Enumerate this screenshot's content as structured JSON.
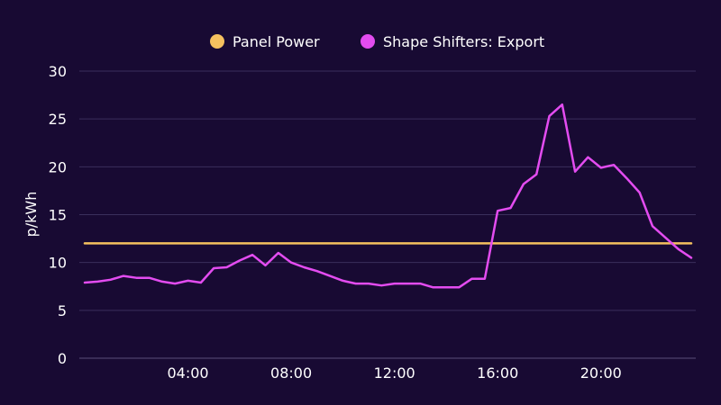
{
  "chart_data": {
    "type": "line",
    "ylabel": "p/kWh",
    "ylim": [
      0,
      30
    ],
    "yticks": [
      0,
      5,
      10,
      15,
      20,
      25,
      30
    ],
    "x_unit": "hours",
    "xlim": [
      0,
      23.5
    ],
    "xticks": [
      {
        "value": 4,
        "label": "04:00"
      },
      {
        "value": 8,
        "label": "08:00"
      },
      {
        "value": 12,
        "label": "12:00"
      },
      {
        "value": 16,
        "label": "16:00"
      },
      {
        "value": 20,
        "label": "20:00"
      }
    ],
    "grid": true,
    "legend_position": "top-center",
    "series": [
      {
        "name": "Panel Power",
        "color": "#f5c15f",
        "x": [
          0,
          23.5
        ],
        "values": [
          12,
          12
        ]
      },
      {
        "name": "Shape Shifters: Export",
        "color": "#e34cf0",
        "x": [
          0,
          0.5,
          1,
          1.5,
          2,
          2.5,
          3,
          3.5,
          4,
          4.5,
          5,
          5.5,
          6,
          6.5,
          7,
          7.5,
          8,
          8.5,
          9,
          9.5,
          10,
          10.5,
          11,
          11.5,
          12,
          12.5,
          13,
          13.5,
          14,
          14.5,
          15,
          15.5,
          16,
          16.5,
          17,
          17.5,
          18,
          18.5,
          19,
          19.5,
          20,
          20.5,
          21,
          21.5,
          22,
          22.5,
          23,
          23.5
        ],
        "values": [
          7.9,
          8.0,
          8.2,
          8.6,
          8.4,
          8.4,
          8.0,
          7.8,
          8.1,
          7.9,
          9.4,
          9.5,
          10.2,
          10.8,
          9.7,
          11.0,
          10.0,
          9.5,
          9.1,
          8.6,
          8.1,
          7.8,
          7.8,
          7.6,
          7.8,
          7.8,
          7.8,
          7.4,
          7.4,
          7.4,
          8.3,
          8.3,
          15.4,
          15.7,
          18.2,
          19.2,
          25.3,
          26.5,
          19.5,
          21.0,
          19.9,
          20.2,
          18.8,
          17.3,
          13.8,
          12.6,
          11.4,
          10.5
        ]
      }
    ]
  }
}
